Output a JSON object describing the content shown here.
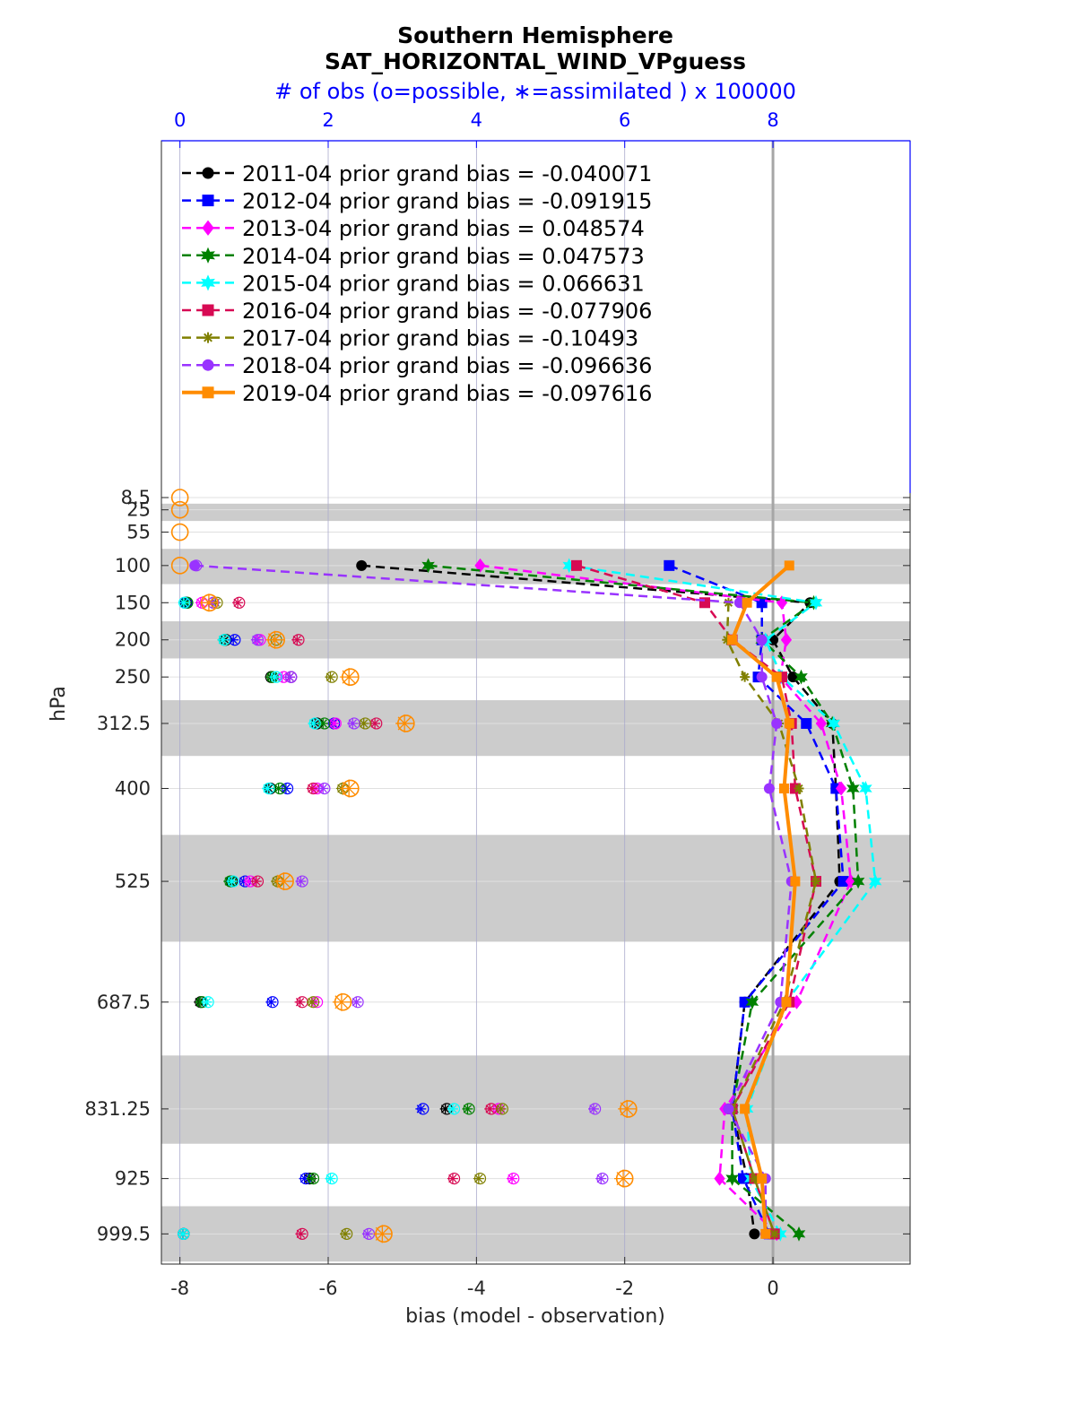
{
  "chart_data": {
    "type": "line",
    "title": "Southern Hemisphere",
    "subtitle": "SAT_HORIZONTAL_WIND_VPguess",
    "top_axis_label": "# of obs (o=possible, ∗=assimilated ) x 100000",
    "xlabel": "bias (model - observation)",
    "ylabel": "hPa",
    "xlim": [
      -8.25,
      1.85
    ],
    "top_xlim": [
      -0.25,
      9.85
    ],
    "x_ticks": [
      "-8",
      "-6",
      "-4",
      "-2",
      "0"
    ],
    "top_ticks": [
      "0",
      "2",
      "4",
      "6",
      "8"
    ],
    "levels": [
      8.5,
      25,
      55,
      100,
      150,
      200,
      250,
      312.5,
      400,
      525,
      687.5,
      831.25,
      925,
      999.5
    ],
    "level_labels": [
      "8.5",
      "25",
      "55",
      "100",
      "150",
      "200",
      "250",
      "312.5",
      "400",
      "525",
      "687.5",
      "831.25",
      "925",
      "999.5"
    ],
    "legend_placement": "top-left",
    "grid": true,
    "series": [
      {
        "name": "2011-04 prior grand bias = -0.040071",
        "color": "#000000",
        "marker": "circle",
        "style": "dashed",
        "bias": [
          null,
          null,
          null,
          -5.55,
          0.5,
          0.0,
          0.27,
          0.8,
          0.85,
          0.9,
          -0.38,
          -0.55,
          -0.35,
          -0.25
        ],
        "obs_possible": [
          null,
          null,
          null,
          null,
          0.08,
          0.62,
          1.23,
          1.85,
          1.22,
          0.7,
          0.28,
          3.6,
          1.75,
          0.05
        ],
        "obs_assim": [
          null,
          null,
          null,
          null,
          0.07,
          0.61,
          1.22,
          1.83,
          1.2,
          0.68,
          0.26,
          3.58,
          1.74,
          0.04
        ]
      },
      {
        "name": "2012-04 prior grand bias = -0.091915",
        "color": "#0000ff",
        "marker": "square",
        "style": "dashed",
        "bias": [
          null,
          null,
          null,
          -1.4,
          -0.15,
          -0.15,
          -0.2,
          0.45,
          0.85,
          0.95,
          -0.38,
          -0.55,
          -0.4,
          -0.05
        ],
        "obs_possible": [
          null,
          null,
          null,
          null,
          0.09,
          0.74,
          1.5,
          2.08,
          1.45,
          0.88,
          1.25,
          3.28,
          1.7,
          0.05
        ],
        "obs_assim": [
          null,
          null,
          null,
          null,
          0.08,
          0.72,
          1.48,
          2.06,
          1.43,
          0.86,
          1.23,
          3.25,
          1.68,
          0.04
        ]
      },
      {
        "name": "2013-04 prior grand bias = 0.048574",
        "color": "#ff00ff",
        "marker": "diamond",
        "style": "dashed",
        "bias": [
          null,
          null,
          null,
          -3.95,
          0.12,
          0.18,
          0.1,
          0.65,
          0.92,
          1.05,
          0.32,
          -0.65,
          -0.72,
          0.05
        ],
        "obs_possible": [
          null,
          null,
          null,
          null,
          0.3,
          1.08,
          1.4,
          2.1,
          1.85,
          0.95,
          1.85,
          4.3,
          4.5,
          0.05
        ],
        "obs_assim": [
          null,
          null,
          null,
          null,
          0.28,
          1.05,
          1.38,
          2.08,
          1.83,
          0.93,
          1.82,
          4.28,
          4.48,
          0.04
        ]
      },
      {
        "name": "2014-04 prior grand bias = 0.047573",
        "color": "#008000",
        "marker": "hexagram",
        "style": "dashed",
        "bias": [
          null,
          null,
          null,
          -4.65,
          0.55,
          -0.15,
          0.38,
          0.8,
          1.08,
          1.15,
          -0.28,
          -0.55,
          -0.55,
          0.35
        ],
        "obs_possible": [
          null,
          null,
          null,
          null,
          0.1,
          0.6,
          1.25,
          1.95,
          1.35,
          0.68,
          0.3,
          3.9,
          1.8,
          0.05
        ],
        "obs_assim": [
          null,
          null,
          null,
          null,
          0.09,
          0.58,
          1.23,
          1.93,
          1.33,
          0.66,
          0.28,
          3.88,
          1.78,
          0.04
        ]
      },
      {
        "name": "2015-04 prior grand bias = 0.066631",
        "color": "#00ffff",
        "marker": "hexagram",
        "style": "dashed",
        "bias": [
          null,
          null,
          null,
          -2.75,
          0.58,
          -0.1,
          0.12,
          0.82,
          1.25,
          1.38,
          0.18,
          -0.35,
          -0.3,
          0.1
        ],
        "obs_possible": [
          null,
          null,
          null,
          null,
          0.06,
          0.6,
          1.3,
          1.82,
          1.2,
          0.72,
          0.38,
          3.7,
          2.05,
          0.05
        ],
        "obs_assim": [
          null,
          null,
          null,
          null,
          0.05,
          0.58,
          1.28,
          1.8,
          1.18,
          0.7,
          0.36,
          3.68,
          2.03,
          0.04
        ]
      },
      {
        "name": "2016-04 prior grand bias = -0.077906",
        "color": "#d70a53",
        "marker": "square",
        "style": "dashed",
        "bias": [
          null,
          null,
          null,
          -2.65,
          -0.92,
          -0.55,
          0.12,
          0.25,
          0.3,
          0.58,
          0.22,
          -0.55,
          -0.25,
          0.02
        ],
        "obs_possible": [
          null,
          null,
          null,
          null,
          0.8,
          1.6,
          1.5,
          2.65,
          1.8,
          1.05,
          1.65,
          4.2,
          3.7,
          1.65
        ],
        "obs_assim": [
          null,
          null,
          null,
          null,
          0.78,
          1.58,
          1.48,
          2.63,
          1.78,
          1.03,
          1.62,
          4.18,
          3.68,
          1.63
        ]
      },
      {
        "name": "2017-04 prior grand bias = -0.10493",
        "color": "#808000",
        "marker": "asterisk",
        "style": "dashed",
        "bias": [
          null,
          null,
          null,
          null,
          -0.6,
          -0.62,
          -0.38,
          0.08,
          0.35,
          0.58,
          0.15,
          -0.55,
          -0.25,
          0.02
        ],
        "obs_possible": [
          null,
          null,
          null,
          null,
          0.5,
          1.3,
          2.05,
          2.5,
          2.2,
          1.32,
          1.8,
          4.35,
          4.05,
          2.25
        ],
        "obs_assim": [
          null,
          null,
          null,
          null,
          0.48,
          1.28,
          2.03,
          2.48,
          2.18,
          1.3,
          1.78,
          4.33,
          4.03,
          2.23
        ]
      },
      {
        "name": "2018-04 prior grand bias = -0.096636",
        "color": "#9933ff",
        "marker": "circle",
        "style": "dashed",
        "bias": [
          null,
          null,
          null,
          -7.8,
          -0.45,
          -0.15,
          -0.15,
          0.05,
          -0.05,
          0.25,
          0.1,
          -0.6,
          -0.1,
          -0.1
        ],
        "obs_possible": [
          null,
          null,
          null,
          0.22,
          0.45,
          1.05,
          1.5,
          2.35,
          1.95,
          1.65,
          2.4,
          5.6,
          5.7,
          2.55
        ],
        "obs_assim": [
          null,
          null,
          null,
          0.2,
          0.43,
          1.03,
          1.48,
          2.33,
          1.93,
          1.63,
          2.38,
          5.58,
          5.68,
          2.53
        ]
      },
      {
        "name": "2019-04 prior grand bias = -0.097616",
        "color": "#ff8c00",
        "marker": "square",
        "style": "solid",
        "bias": [
          null,
          null,
          null,
          0.22,
          -0.35,
          -0.55,
          0.05,
          0.22,
          0.15,
          0.3,
          0.18,
          -0.38,
          -0.15,
          -0.1
        ],
        "obs_possible": [
          0.0,
          0.0,
          0.0,
          0.0,
          0.4,
          1.3,
          2.3,
          3.05,
          2.3,
          1.42,
          2.2,
          6.05,
          6.0,
          2.75
        ],
        "obs_assim": [
          null,
          null,
          null,
          null,
          0.39,
          1.28,
          2.28,
          3.03,
          2.28,
          1.4,
          2.18,
          6.03,
          5.98,
          2.73
        ]
      }
    ]
  }
}
